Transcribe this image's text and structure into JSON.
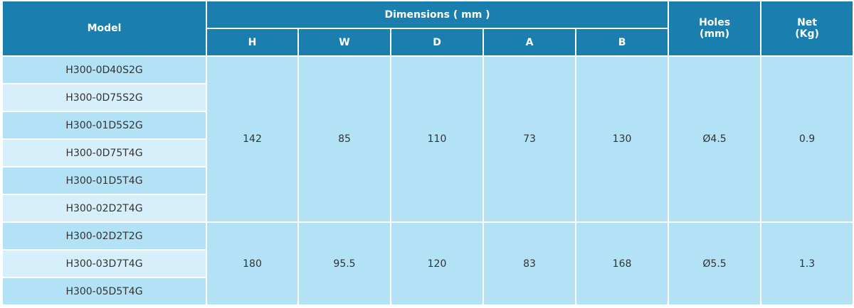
{
  "header": {
    "model": "Model",
    "dimensions": "Dimensions ( mm )",
    "columns": [
      "H",
      "W",
      "D",
      "A",
      "B"
    ],
    "holes": [
      "Holes",
      "(mm)"
    ],
    "net": [
      "Net",
      "(Kg)"
    ]
  },
  "groups": [
    {
      "models": [
        "H300-0D40S2G",
        "H300-0D75S2G",
        "H300-01D5S2G",
        "H300-0D75T4G",
        "H300-01D5T4G",
        "H300-02D2T4G"
      ],
      "values": [
        142,
        85,
        110,
        73,
        130
      ],
      "holes": "Ø4.5",
      "net": 0.9
    },
    {
      "models": [
        "H300-02D2T2G",
        "H300-03D7T4G",
        "H300-05D5T4G"
      ],
      "values": [
        180,
        95.5,
        120,
        83,
        168
      ],
      "holes": "Ø5.5",
      "net": 1.3
    }
  ]
}
